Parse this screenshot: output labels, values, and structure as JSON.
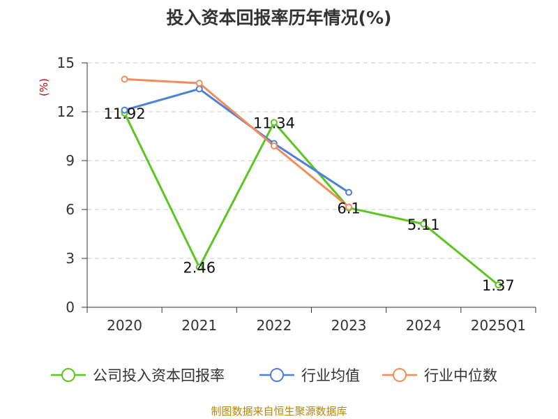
{
  "chart_data": {
    "type": "line",
    "title": "投入资本回报率历年情况(%)",
    "ylabel": "(%)",
    "xlabel": "",
    "categories": [
      "2020",
      "2021",
      "2022",
      "2023",
      "2024",
      "2025Q1"
    ],
    "ylim": [
      0,
      15
    ],
    "yticks": [
      0,
      3,
      6,
      9,
      12,
      15
    ],
    "grid": true,
    "legend_position": "bottom",
    "series": [
      {
        "name": "公司投入资本回报率",
        "color": "#5cc51f",
        "values": [
          11.92,
          2.46,
          11.34,
          6.1,
          5.11,
          1.37
        ],
        "labels": [
          "11.92",
          "2.46",
          "11.34",
          "6.1",
          "5.11",
          "1.37"
        ]
      },
      {
        "name": "行业均值",
        "color": "#4e7fd9",
        "values": [
          12.1,
          13.4,
          10.05,
          7.05,
          null,
          null
        ]
      },
      {
        "name": "行业中位数",
        "color": "#f28d5b",
        "values": [
          14.0,
          13.75,
          9.9,
          6.15,
          null,
          null
        ]
      }
    ]
  },
  "footer": "制图数据来自恒生聚源数据库"
}
